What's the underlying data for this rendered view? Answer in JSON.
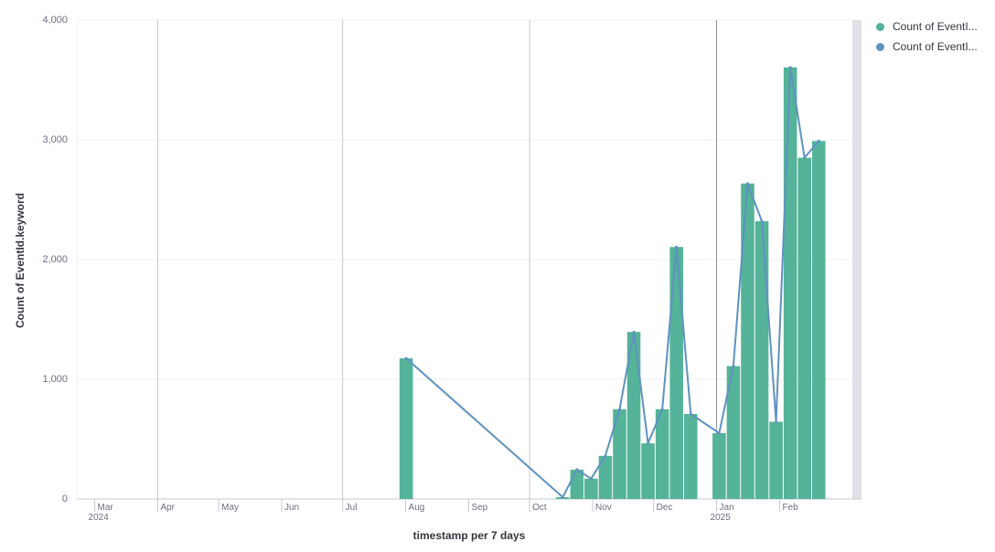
{
  "chart_data": {
    "type": "bar",
    "ylabel": "Count of EventId.keyword",
    "xlabel": "timestamp per 7 days",
    "ylim": [
      0,
      4000
    ],
    "y_ticks": [
      "0",
      "1,000",
      "2,000",
      "3,000",
      "4,000"
    ],
    "x_domain": [
      "2024-02-23",
      "2025-03-07"
    ],
    "x_ticks": [
      {
        "date": "2024-03-01",
        "label": "Mar",
        "year": "2024"
      },
      {
        "date": "2024-04-01",
        "label": "Apr",
        "year": ""
      },
      {
        "date": "2024-05-01",
        "label": "May",
        "year": ""
      },
      {
        "date": "2024-06-01",
        "label": "Jun",
        "year": ""
      },
      {
        "date": "2024-07-01",
        "label": "Jul",
        "year": ""
      },
      {
        "date": "2024-08-01",
        "label": "Aug",
        "year": ""
      },
      {
        "date": "2024-09-01",
        "label": "Sep",
        "year": ""
      },
      {
        "date": "2024-10-01",
        "label": "Oct",
        "year": ""
      },
      {
        "date": "2024-11-01",
        "label": "Nov",
        "year": ""
      },
      {
        "date": "2024-12-01",
        "label": "Dec",
        "year": ""
      },
      {
        "date": "2025-01-01",
        "label": "Jan",
        "year": "2025"
      },
      {
        "date": "2025-02-01",
        "label": "Feb",
        "year": ""
      }
    ],
    "grid": true,
    "legend_position": "right",
    "series": [
      {
        "name": "Count of EventI...",
        "type": "bar",
        "color": "#54b399",
        "points": [
          {
            "x": "2024-07-29",
            "y": 1175
          },
          {
            "x": "2024-10-14",
            "y": 15
          },
          {
            "x": "2024-10-21",
            "y": 245
          },
          {
            "x": "2024-10-28",
            "y": 170
          },
          {
            "x": "2024-11-04",
            "y": 360
          },
          {
            "x": "2024-11-11",
            "y": 750
          },
          {
            "x": "2024-11-18",
            "y": 1395
          },
          {
            "x": "2024-11-25",
            "y": 465
          },
          {
            "x": "2024-12-02",
            "y": 750
          },
          {
            "x": "2024-12-09",
            "y": 2105
          },
          {
            "x": "2024-12-16",
            "y": 710
          },
          {
            "x": "2024-12-30",
            "y": 550
          },
          {
            "x": "2025-01-06",
            "y": 1110
          },
          {
            "x": "2025-01-13",
            "y": 2635
          },
          {
            "x": "2025-01-20",
            "y": 2320
          },
          {
            "x": "2025-01-27",
            "y": 645
          },
          {
            "x": "2025-02-03",
            "y": 3605
          },
          {
            "x": "2025-02-10",
            "y": 2850
          },
          {
            "x": "2025-02-17",
            "y": 2990
          }
        ]
      },
      {
        "name": "Count of EventI...",
        "type": "line",
        "color": "#6092c0",
        "points": [
          {
            "x": "2024-07-29",
            "y": 1175
          },
          {
            "x": "2024-10-14",
            "y": 15
          },
          {
            "x": "2024-10-21",
            "y": 245
          },
          {
            "x": "2024-10-28",
            "y": 170
          },
          {
            "x": "2024-11-04",
            "y": 360
          },
          {
            "x": "2024-11-11",
            "y": 750
          },
          {
            "x": "2024-11-18",
            "y": 1395
          },
          {
            "x": "2024-11-25",
            "y": 465
          },
          {
            "x": "2024-12-02",
            "y": 750
          },
          {
            "x": "2024-12-09",
            "y": 2105
          },
          {
            "x": "2024-12-16",
            "y": 710
          },
          {
            "x": "2024-12-30",
            "y": 550
          },
          {
            "x": "2025-01-06",
            "y": 1110
          },
          {
            "x": "2025-01-13",
            "y": 2635
          },
          {
            "x": "2025-01-20",
            "y": 2320
          },
          {
            "x": "2025-01-27",
            "y": 645
          },
          {
            "x": "2025-02-03",
            "y": 3605
          },
          {
            "x": "2025-02-10",
            "y": 2850
          },
          {
            "x": "2025-02-17",
            "y": 2990
          }
        ]
      }
    ]
  }
}
